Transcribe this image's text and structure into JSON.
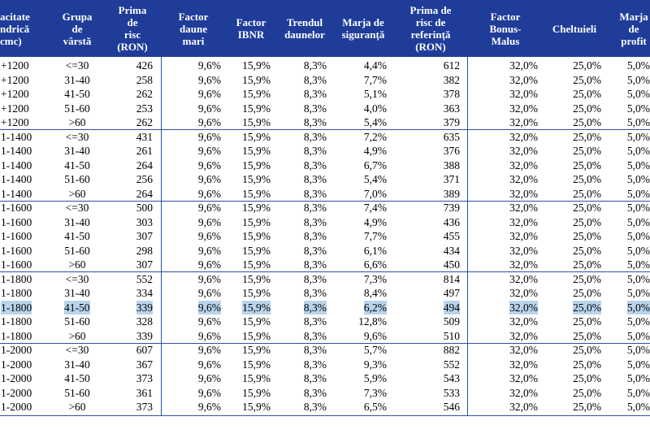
{
  "header": [
    [
      "acitate",
      "ndrică",
      "cmc)"
    ],
    [
      "Grupa",
      "de",
      "vârstă"
    ],
    [
      "Prima",
      "de",
      "risc",
      "(RON)"
    ],
    [
      "Factor",
      "daune",
      "mari"
    ],
    [
      "Factor",
      "IBNR"
    ],
    [
      "Trendul",
      "daunelor"
    ],
    [
      "Marja de",
      "siguranță"
    ],
    [
      "Prima de",
      "risc de",
      "referință",
      "(RON)"
    ],
    [
      "Factor",
      "Bonus-",
      "Malus"
    ],
    [
      "Cheltuieli"
    ],
    [
      "Marja",
      "de",
      "profit"
    ]
  ],
  "highlighted_row": 17,
  "table": {
    "rows": [
      [
        "+1200",
        "<=30",
        "426",
        "9,6%",
        "15,9%",
        "8,3%",
        "4,4%",
        "612",
        "32,0%",
        "25,0%",
        "5,0%"
      ],
      [
        "+1200",
        "31-40",
        "258",
        "9,6%",
        "15,9%",
        "8,3%",
        "7,7%",
        "382",
        "32,0%",
        "25,0%",
        "5,0%"
      ],
      [
        "+1200",
        "41-50",
        "262",
        "9,6%",
        "15,9%",
        "8,3%",
        "5,1%",
        "378",
        "32,0%",
        "25,0%",
        "5,0%"
      ],
      [
        "+1200",
        "51-60",
        "253",
        "9,6%",
        "15,9%",
        "8,3%",
        "4,0%",
        "363",
        "32,0%",
        "25,0%",
        "5,0%"
      ],
      [
        "+1200",
        ">60",
        "262",
        "9,6%",
        "15,9%",
        "8,3%",
        "5,4%",
        "379",
        "32,0%",
        "25,0%",
        "5,0%"
      ],
      [
        "1-1400",
        "<=30",
        "431",
        "9,6%",
        "15,9%",
        "8,3%",
        "7,2%",
        "635",
        "32,0%",
        "25,0%",
        "5,0%"
      ],
      [
        "1-1400",
        "31-40",
        "261",
        "9,6%",
        "15,9%",
        "8,3%",
        "4,9%",
        "376",
        "32,0%",
        "25,0%",
        "5,0%"
      ],
      [
        "1-1400",
        "41-50",
        "264",
        "9,6%",
        "15,9%",
        "8,3%",
        "6,7%",
        "388",
        "32,0%",
        "25,0%",
        "5,0%"
      ],
      [
        "1-1400",
        "51-60",
        "256",
        "9,6%",
        "15,9%",
        "8,3%",
        "5,4%",
        "371",
        "32,0%",
        "25,0%",
        "5,0%"
      ],
      [
        "1-1400",
        ">60",
        "264",
        "9,6%",
        "15,9%",
        "8,3%",
        "7,0%",
        "389",
        "32,0%",
        "25,0%",
        "5,0%"
      ],
      [
        "1-1600",
        "<=30",
        "500",
        "9,6%",
        "15,9%",
        "8,3%",
        "7,4%",
        "739",
        "32,0%",
        "25,0%",
        "5,0%"
      ],
      [
        "1-1600",
        "31-40",
        "303",
        "9,6%",
        "15,9%",
        "8,3%",
        "4,9%",
        "436",
        "32,0%",
        "25,0%",
        "5,0%"
      ],
      [
        "1-1600",
        "41-50",
        "307",
        "9,6%",
        "15,9%",
        "8,3%",
        "7,7%",
        "455",
        "32,0%",
        "25,0%",
        "5,0%"
      ],
      [
        "1-1600",
        "51-60",
        "298",
        "9,6%",
        "15,9%",
        "8,3%",
        "6,1%",
        "434",
        "32,0%",
        "25,0%",
        "5,0%"
      ],
      [
        "1-1600",
        ">60",
        "307",
        "9,6%",
        "15,9%",
        "8,3%",
        "6,6%",
        "450",
        "32,0%",
        "25,0%",
        "5,0%"
      ],
      [
        "1-1800",
        "<=30",
        "552",
        "9,6%",
        "15,9%",
        "8,3%",
        "7,3%",
        "814",
        "32,0%",
        "25,0%",
        "5,0%"
      ],
      [
        "1-1800",
        "31-40",
        "334",
        "9,6%",
        "15,9%",
        "8,3%",
        "8,4%",
        "497",
        "32,0%",
        "25,0%",
        "5,0%"
      ],
      [
        "1-1800",
        "41-50",
        "339",
        "9,6%",
        "15,9%",
        "8,3%",
        "6,2%",
        "494",
        "32,0%",
        "25,0%",
        "5,0%"
      ],
      [
        "1-1800",
        "51-60",
        "328",
        "9,6%",
        "15,9%",
        "8,3%",
        "12,8%",
        "509",
        "32,0%",
        "25,0%",
        "5,0%"
      ],
      [
        "1-1800",
        ">60",
        "339",
        "9,6%",
        "15,9%",
        "8,3%",
        "9,6%",
        "510",
        "32,0%",
        "25,0%",
        "5,0%"
      ],
      [
        "1-2000",
        "<=30",
        "607",
        "9,6%",
        "15,9%",
        "8,3%",
        "5,7%",
        "882",
        "32,0%",
        "25,0%",
        "5,0%"
      ],
      [
        "1-2000",
        "31-40",
        "367",
        "9,6%",
        "15,9%",
        "8,3%",
        "9,3%",
        "552",
        "32,0%",
        "25,0%",
        "5,0%"
      ],
      [
        "1-2000",
        "41-50",
        "373",
        "9,6%",
        "15,9%",
        "8,3%",
        "5,9%",
        "543",
        "32,0%",
        "25,0%",
        "5,0%"
      ],
      [
        "1-2000",
        "51-60",
        "361",
        "9,6%",
        "15,9%",
        "8,3%",
        "7,3%",
        "533",
        "32,0%",
        "25,0%",
        "5,0%"
      ],
      [
        "1-2000",
        ">60",
        "373",
        "9,6%",
        "15,9%",
        "8,3%",
        "6,5%",
        "546",
        "32,0%",
        "25,0%",
        "5,0%"
      ]
    ]
  }
}
